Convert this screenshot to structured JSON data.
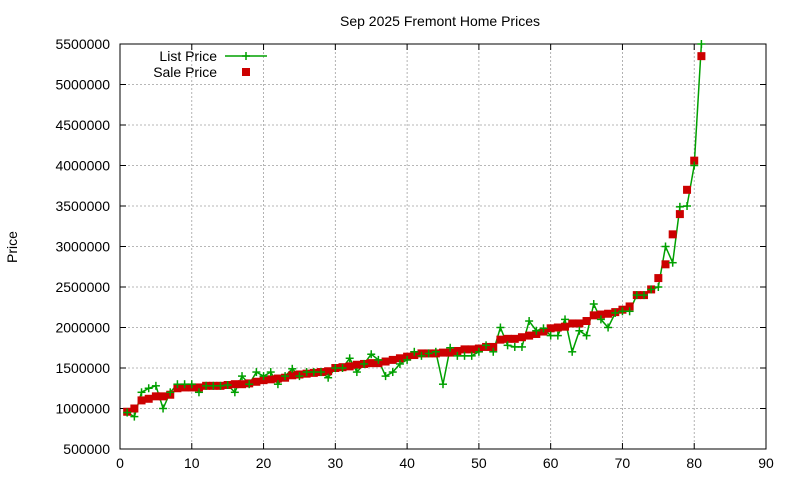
{
  "chart_data": {
    "type": "line",
    "title": "Sep 2025 Fremont Home Prices",
    "xlabel": "",
    "ylabel": "Price",
    "xlim": [
      0,
      90
    ],
    "ylim": [
      500000,
      5500000
    ],
    "xticks": [
      "0",
      "10",
      "20",
      "30",
      "40",
      "50",
      "60",
      "70",
      "80",
      "90"
    ],
    "yticks": [
      "500000",
      "1000000",
      "1500000",
      "2000000",
      "2500000",
      "3000000",
      "3500000",
      "4000000",
      "4500000",
      "5000000",
      "5500000"
    ],
    "grid": true,
    "legend_position": "top-left",
    "colors": {
      "list": "#00a000",
      "sale": "#cc0000"
    },
    "series": [
      {
        "name": "List Price",
        "style": "line+plus",
        "x": [
          1,
          2,
          3,
          4,
          5,
          6,
          7,
          8,
          9,
          10,
          11,
          12,
          13,
          14,
          15,
          16,
          17,
          18,
          19,
          20,
          21,
          22,
          23,
          24,
          25,
          26,
          27,
          28,
          29,
          30,
          31,
          32,
          33,
          34,
          35,
          36,
          37,
          38,
          39,
          40,
          41,
          42,
          43,
          44,
          45,
          46,
          47,
          48,
          49,
          50,
          51,
          52,
          53,
          54,
          55,
          56,
          57,
          58,
          59,
          60,
          61,
          62,
          63,
          64,
          65,
          66,
          67,
          68,
          69,
          70,
          71,
          72,
          73,
          74,
          75,
          76,
          77,
          78,
          79,
          80,
          81
        ],
        "values": [
          950000,
          900000,
          1200000,
          1250000,
          1280000,
          1000000,
          1200000,
          1300000,
          1300000,
          1300000,
          1200000,
          1280000,
          1280000,
          1280000,
          1290000,
          1200000,
          1400000,
          1300000,
          1450000,
          1400000,
          1450000,
          1300000,
          1400000,
          1490000,
          1400000,
          1450000,
          1450000,
          1450000,
          1380000,
          1500000,
          1500000,
          1620000,
          1450000,
          1550000,
          1670000,
          1600000,
          1400000,
          1450000,
          1550000,
          1600000,
          1700000,
          1650000,
          1680000,
          1700000,
          1300000,
          1750000,
          1650000,
          1650000,
          1650000,
          1700000,
          1780000,
          1700000,
          2000000,
          1780000,
          1760000,
          1760000,
          2080000,
          1960000,
          1990000,
          1900000,
          1900000,
          2100000,
          1700000,
          1960000,
          1900000,
          2290000,
          2100000,
          2000000,
          2180000,
          2200000,
          2200000,
          2400000,
          2400000,
          2470000,
          2500000,
          3000000,
          2800000,
          3490000,
          3500000,
          4000000,
          5500000
        ]
      },
      {
        "name": "Sale Price",
        "style": "square",
        "x": [
          1,
          2,
          3,
          4,
          5,
          6,
          7,
          8,
          9,
          10,
          11,
          12,
          13,
          14,
          15,
          16,
          17,
          18,
          19,
          20,
          21,
          22,
          23,
          24,
          25,
          26,
          27,
          28,
          29,
          30,
          31,
          32,
          33,
          34,
          35,
          36,
          37,
          38,
          39,
          40,
          41,
          42,
          43,
          44,
          45,
          46,
          47,
          48,
          49,
          50,
          51,
          52,
          53,
          54,
          55,
          56,
          57,
          58,
          59,
          60,
          61,
          62,
          63,
          64,
          65,
          66,
          67,
          68,
          69,
          70,
          71,
          72,
          73,
          74,
          75,
          76,
          77,
          78,
          79,
          80,
          81
        ],
        "values": [
          960000,
          1000000,
          1100000,
          1120000,
          1150000,
          1150000,
          1170000,
          1250000,
          1260000,
          1260000,
          1260000,
          1280000,
          1280000,
          1280000,
          1290000,
          1300000,
          1300000,
          1310000,
          1330000,
          1350000,
          1360000,
          1370000,
          1380000,
          1410000,
          1420000,
          1430000,
          1440000,
          1450000,
          1460000,
          1500000,
          1510000,
          1520000,
          1540000,
          1550000,
          1560000,
          1560000,
          1580000,
          1600000,
          1620000,
          1640000,
          1660000,
          1680000,
          1680000,
          1680000,
          1690000,
          1690000,
          1710000,
          1730000,
          1730000,
          1740000,
          1760000,
          1760000,
          1850000,
          1860000,
          1860000,
          1880000,
          1900000,
          1920000,
          1950000,
          1990000,
          2000000,
          2010000,
          2050000,
          2050000,
          2080000,
          2150000,
          2160000,
          2170000,
          2190000,
          2220000,
          2260000,
          2400000,
          2400000,
          2470000,
          2610000,
          2780000,
          3150000,
          3400000,
          3700000,
          4060000,
          5350000
        ]
      }
    ]
  }
}
